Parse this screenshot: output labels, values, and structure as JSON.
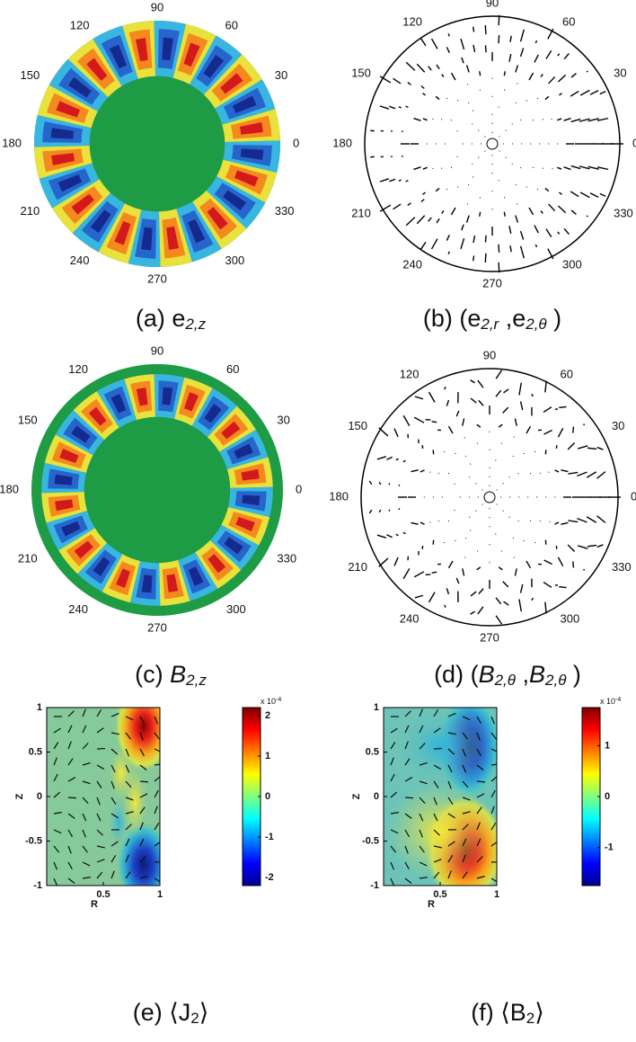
{
  "chart_data": [
    {
      "type": "polar-color",
      "angle_ticks": [
        0,
        30,
        60,
        90,
        120,
        150,
        180,
        210,
        240,
        270,
        300,
        330
      ],
      "caption_parts": [
        {
          "text": "(a) e"
        },
        {
          "text": "2,z",
          "sub": true,
          "italic": true
        }
      ]
    },
    {
      "type": "polar-vector",
      "angle_ticks": [
        0,
        30,
        60,
        90,
        120,
        150,
        180,
        210,
        240,
        270,
        300,
        330
      ],
      "caption_parts": [
        {
          "text": "(b) (e"
        },
        {
          "text": "2,r",
          "sub": true,
          "italic": true
        },
        {
          "text": " ,e"
        },
        {
          "text": "2,θ",
          "sub": true,
          "italic": true
        },
        {
          "text": " )"
        }
      ]
    },
    {
      "type": "polar-color",
      "angle_ticks": [
        0,
        30,
        60,
        90,
        120,
        150,
        180,
        210,
        240,
        270,
        300,
        330
      ],
      "caption_parts": [
        {
          "text": "(c) "
        },
        {
          "text": "B",
          "italic": true
        },
        {
          "text": "2,z",
          "sub": true,
          "italic": true
        }
      ]
    },
    {
      "type": "polar-vector",
      "angle_ticks": [
        0,
        30,
        60,
        90,
        120,
        150,
        180,
        210,
        240,
        270,
        300,
        330
      ],
      "caption_parts": [
        {
          "text": "(d) ("
        },
        {
          "text": "B",
          "italic": true
        },
        {
          "text": "2,θ",
          "sub": true,
          "italic": true
        },
        {
          "text": " ,"
        },
        {
          "text": "B",
          "italic": true
        },
        {
          "text": "2,θ",
          "sub": true,
          "italic": true
        },
        {
          "text": " )"
        }
      ]
    },
    {
      "type": "heatmap",
      "xlim": [
        0,
        1
      ],
      "xticks": [
        0.5,
        1
      ],
      "ylim": [
        -1,
        1
      ],
      "yticks": [
        -1,
        -0.5,
        0,
        0.5,
        1
      ],
      "xlabel": "R",
      "ylabel": "Z",
      "colorbar": {
        "lim": [
          -2.2,
          2.2
        ],
        "ticks": [
          -2,
          -1,
          0,
          1,
          2
        ],
        "exponent_base": "x 10",
        "exponent": "-4"
      },
      "caption_parts": [
        {
          "text": "(e) ⟨J"
        },
        {
          "text": "2",
          "sub": true
        },
        {
          "text": "⟩"
        }
      ]
    },
    {
      "type": "heatmap",
      "xlim": [
        0,
        1
      ],
      "xticks": [
        0.5,
        1
      ],
      "ylim": [
        -1,
        1
      ],
      "yticks": [
        -1,
        -0.5,
        0,
        0.5,
        1
      ],
      "xlabel": "R",
      "ylabel": "Z",
      "colorbar": {
        "lim": [
          -1.75,
          1.75
        ],
        "ticks": [
          -1,
          0,
          1
        ],
        "exponent_base": "x 10",
        "exponent": "-4"
      },
      "caption_parts": [
        {
          "text": "(f) ⟨B"
        },
        {
          "text": "2",
          "sub": true
        },
        {
          "text": "⟩"
        }
      ]
    }
  ]
}
